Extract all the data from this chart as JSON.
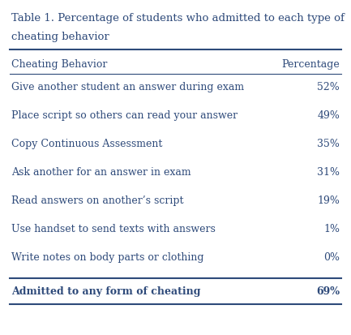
{
  "title_line1": "Table 1. Percentage of students who admitted to each type of",
  "title_line2": "cheating behavior",
  "col1_header": "Cheating Behavior",
  "col2_header": "Percentage",
  "rows": [
    [
      "Give another student an answer during exam",
      "52%"
    ],
    [
      "Place script so others can read your answer",
      "49%"
    ],
    [
      "Copy Continuous Assessment",
      "35%"
    ],
    [
      "Ask another for an answer in exam",
      "31%"
    ],
    [
      "Read answers on another’s script",
      "19%"
    ],
    [
      "Use handset to send texts with answers",
      "1%"
    ],
    [
      "Write notes on body parts or clothing",
      "0%"
    ]
  ],
  "footer_row": [
    "Admitted to any form of cheating",
    "69%"
  ],
  "text_color": "#2E4A7A",
  "bg_color": "#FFFFFF",
  "font_size": 9.0,
  "header_font_size": 9.0,
  "title_font_size": 9.5,
  "footer_font_size": 9.0
}
